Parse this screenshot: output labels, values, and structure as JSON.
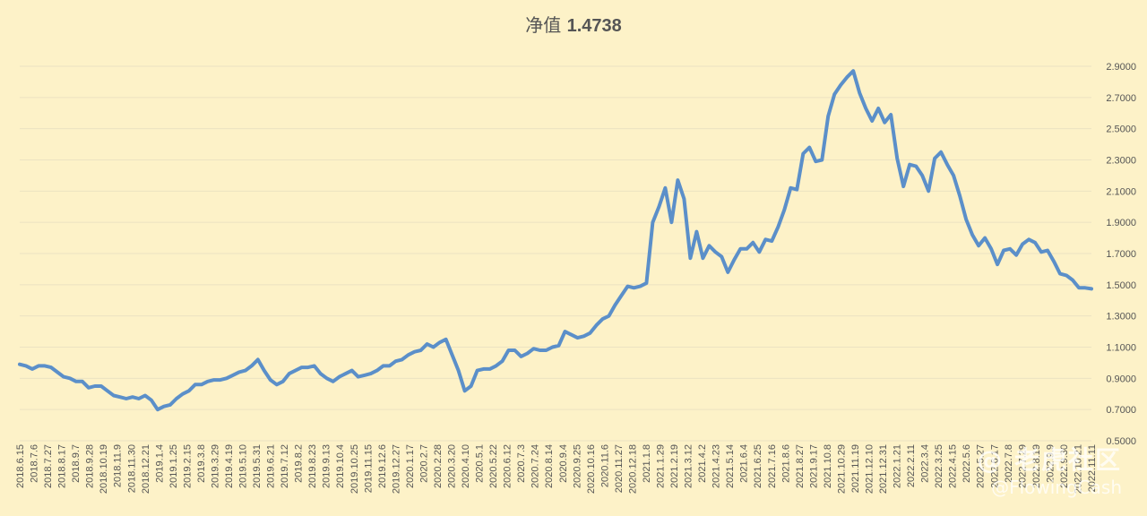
{
  "chart_data": {
    "type": "line",
    "title_prefix": "净值",
    "title_value": "1.4738",
    "y_ticks": [
      "0.5000",
      "0.7000",
      "0.9000",
      "1.1000",
      "1.3000",
      "1.5000",
      "1.7000",
      "1.9000",
      "2.1000",
      "2.3000",
      "2.5000",
      "2.7000",
      "2.9000"
    ],
    "ylim": [
      0.5,
      2.9
    ],
    "x_ticks": [
      "2018.6.15",
      "2018.7.6",
      "2018.7.27",
      "2018.8.17",
      "2018.9.7",
      "2018.9.28",
      "2018.10.19",
      "2018.11.9",
      "2018.11.30",
      "2018.12.21",
      "2019.1.4",
      "2019.1.25",
      "2019.2.15",
      "2019.3.8",
      "2019.3.29",
      "2019.4.19",
      "2019.5.10",
      "2019.5.31",
      "2019.6.21",
      "2019.7.12",
      "2019.8.2",
      "2019.8.23",
      "2019.9.13",
      "2019.10.4",
      "2019.10.25",
      "2019.11.15",
      "2019.12.6",
      "2019.12.27",
      "2020.1.17",
      "2020.2.7",
      "2020.2.28",
      "2020.3.20",
      "2020.4.10",
      "2020.5.1",
      "2020.5.22",
      "2020.6.12",
      "2020.7.3",
      "2020.7.24",
      "2020.8.14",
      "2020.9.4",
      "2020.9.25",
      "2020.10.16",
      "2020.11.6",
      "2020.11.27",
      "2020.12.18",
      "2021.1.8",
      "2021.1.29",
      "2021.2.19",
      "2021.3.12",
      "2021.4.2",
      "2021.4.23",
      "2021.5.14",
      "2021.6.4",
      "2021.6.25",
      "2021.7.16",
      "2021.8.6",
      "2021.8.27",
      "2021.9.17",
      "2021.10.8",
      "2021.10.29",
      "2021.11.19",
      "2021.12.10",
      "2021.12.31",
      "2022.1.21",
      "2022.2.11",
      "2022.3.4",
      "2022.3.25",
      "2022.4.15",
      "2022.5.6",
      "2022.5.27",
      "2022.6.17",
      "2022.7.8",
      "2022.7.29",
      "2022.8.19",
      "2022.9.9",
      "2022.9.30",
      "2022.10.21",
      "2022.11.11"
    ],
    "series": [
      {
        "color": "#5b8fc9",
        "values": [
          0.99,
          0.98,
          0.96,
          0.98,
          0.98,
          0.97,
          0.94,
          0.91,
          0.9,
          0.88,
          0.88,
          0.84,
          0.85,
          0.85,
          0.82,
          0.79,
          0.78,
          0.77,
          0.78,
          0.77,
          0.79,
          0.76,
          0.7,
          0.72,
          0.73,
          0.77,
          0.8,
          0.82,
          0.86,
          0.86,
          0.88,
          0.89,
          0.89,
          0.9,
          0.92,
          0.94,
          0.95,
          0.98,
          1.02,
          0.95,
          0.89,
          0.86,
          0.88,
          0.93,
          0.95,
          0.97,
          0.97,
          0.98,
          0.93,
          0.9,
          0.88,
          0.91,
          0.93,
          0.95,
          0.91,
          0.92,
          0.93,
          0.95,
          0.98,
          0.98,
          1.01,
          1.02,
          1.05,
          1.07,
          1.08,
          1.12,
          1.1,
          1.13,
          1.15,
          1.05,
          0.95,
          0.82,
          0.85,
          0.95,
          0.96,
          0.96,
          0.98,
          1.01,
          1.08,
          1.08,
          1.04,
          1.06,
          1.09,
          1.08,
          1.08,
          1.1,
          1.11,
          1.2,
          1.18,
          1.16,
          1.17,
          1.19,
          1.24,
          1.28,
          1.3,
          1.37,
          1.43,
          1.49,
          1.48,
          1.49,
          1.51,
          1.9,
          2.0,
          2.12,
          1.9,
          2.17,
          2.05,
          1.67,
          1.84,
          1.67,
          1.75,
          1.71,
          1.68,
          1.58,
          1.66,
          1.73,
          1.73,
          1.77,
          1.71,
          1.79,
          1.78,
          1.87,
          1.98,
          2.12,
          2.11,
          2.34,
          2.38,
          2.29,
          2.3,
          2.58,
          2.72,
          2.78,
          2.83,
          2.87,
          2.73,
          2.63,
          2.55,
          2.63,
          2.54,
          2.59,
          2.31,
          2.13,
          2.27,
          2.26,
          2.2,
          2.1,
          2.31,
          2.35,
          2.27,
          2.2,
          2.07,
          1.92,
          1.82,
          1.75,
          1.8,
          1.73,
          1.63,
          1.72,
          1.73,
          1.69,
          1.76,
          1.79,
          1.77,
          1.71,
          1.72,
          1.65,
          1.57,
          1.56,
          1.53,
          1.48,
          1.48,
          1.4738
        ]
      }
    ]
  },
  "watermark": {
    "line1": "@ 老虎社区",
    "line2": "@FlowingCash"
  }
}
